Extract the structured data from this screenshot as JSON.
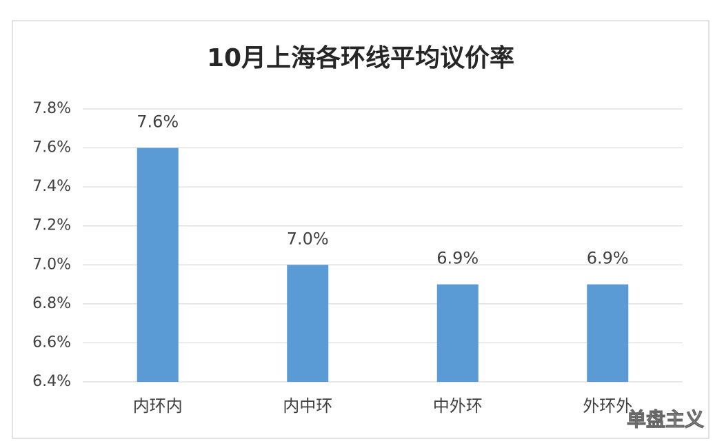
{
  "chart_data": {
    "type": "bar",
    "title": "10月上海各环线平均议价率",
    "categories": [
      "内环内",
      "内中环",
      "中外环",
      "外环外"
    ],
    "values": [
      7.6,
      7.0,
      6.9,
      6.9
    ],
    "value_labels": [
      "7.6%",
      "7.0%",
      "6.9%",
      "6.9%"
    ],
    "color": "#5b9bd5",
    "ylim": [
      6.4,
      7.8
    ],
    "yticks": [
      {
        "value": 6.4,
        "label": "6.4%"
      },
      {
        "value": 6.6,
        "label": "6.6%"
      },
      {
        "value": 6.8,
        "label": "6.8%"
      },
      {
        "value": 7.0,
        "label": "7.0%"
      },
      {
        "value": 7.2,
        "label": "7.2%"
      },
      {
        "value": 7.4,
        "label": "7.4%"
      },
      {
        "value": 7.6,
        "label": "7.6%"
      },
      {
        "value": 7.8,
        "label": "7.8%"
      }
    ],
    "grid": true
  },
  "watermark": "单盘主义"
}
